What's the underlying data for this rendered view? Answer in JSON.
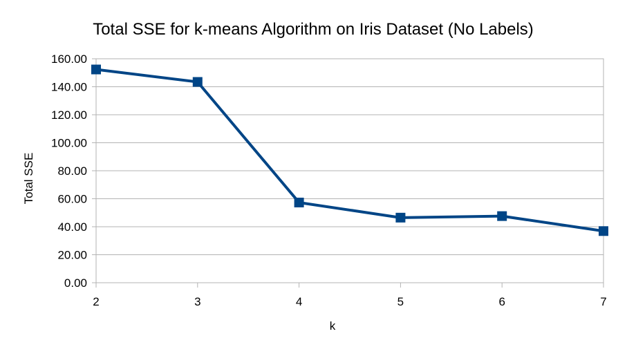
{
  "chart_data": {
    "type": "line",
    "title": "Total SSE for k-means Algorithm on Iris Dataset (No Labels)",
    "xlabel": "k",
    "ylabel": "Total SSE",
    "x": [
      2,
      3,
      4,
      5,
      6,
      7
    ],
    "x_tick_labels": [
      "2",
      "3",
      "4",
      "5",
      "6",
      "7"
    ],
    "series": [
      {
        "values": [
          152.35,
          143.45,
          57.3,
          46.5,
          47.6,
          36.9
        ],
        "color": "#004586",
        "marker": "square"
      }
    ],
    "ylim": [
      0,
      160
    ],
    "y_ticks": [
      0,
      20,
      40,
      60,
      80,
      100,
      120,
      140,
      160
    ],
    "y_tick_labels": [
      "0.00",
      "20.00",
      "40.00",
      "60.00",
      "80.00",
      "100.00",
      "120.00",
      "140.00",
      "160.00"
    ],
    "grid": true,
    "legend": "none"
  }
}
